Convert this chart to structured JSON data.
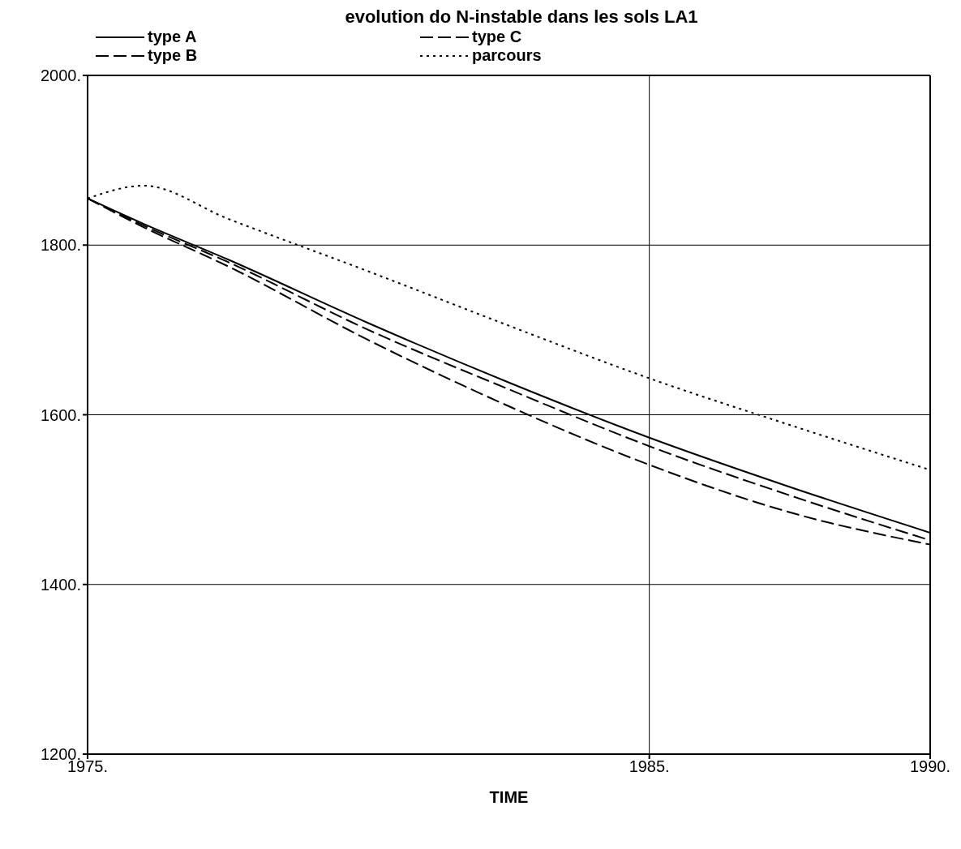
{
  "chart_data": {
    "type": "line",
    "title": "evolution do N-instable dans les sols LA1",
    "xlabel": "TIME",
    "x": [
      1975,
      1976,
      1977.5,
      1980,
      1982.5,
      1985,
      1987.5,
      1990
    ],
    "series": [
      {
        "name": "type A",
        "color": "#000000",
        "line_style": "solid",
        "values": [
          1855,
          1825,
          1783,
          1708,
          1638,
          1573,
          1515,
          1461
        ]
      },
      {
        "name": "type B",
        "color": "#000000",
        "line_style": "dashed",
        "values": [
          1855,
          1823,
          1780,
          1700,
          1630,
          1563,
          1505,
          1452
        ]
      },
      {
        "name": "type C",
        "color": "#000000",
        "line_style": "dashed",
        "values": [
          1855,
          1821,
          1775,
          1688,
          1610,
          1541,
          1485,
          1447
        ]
      },
      {
        "name": "parcours",
        "color": "#000000",
        "line_style": "dotted",
        "values": [
          1855,
          1870,
          1831,
          1769,
          1705,
          1643,
          1588,
          1535
        ]
      }
    ],
    "xlim": [
      1975,
      1990
    ],
    "xticks": [
      {
        "value": 1975,
        "label": "1975."
      },
      {
        "value": 1985,
        "label": "1985."
      },
      {
        "value": 1990,
        "label": "1990."
      }
    ],
    "ylim": [
      1200,
      2000
    ],
    "yticks": [
      {
        "value": 1200,
        "label": "1200."
      },
      {
        "value": 1400,
        "label": "1400."
      },
      {
        "value": 1600,
        "label": "1600."
      },
      {
        "value": 1800,
        "label": "1800."
      },
      {
        "value": 2000,
        "label": "2000."
      }
    ],
    "grid": true,
    "legend": "top"
  }
}
